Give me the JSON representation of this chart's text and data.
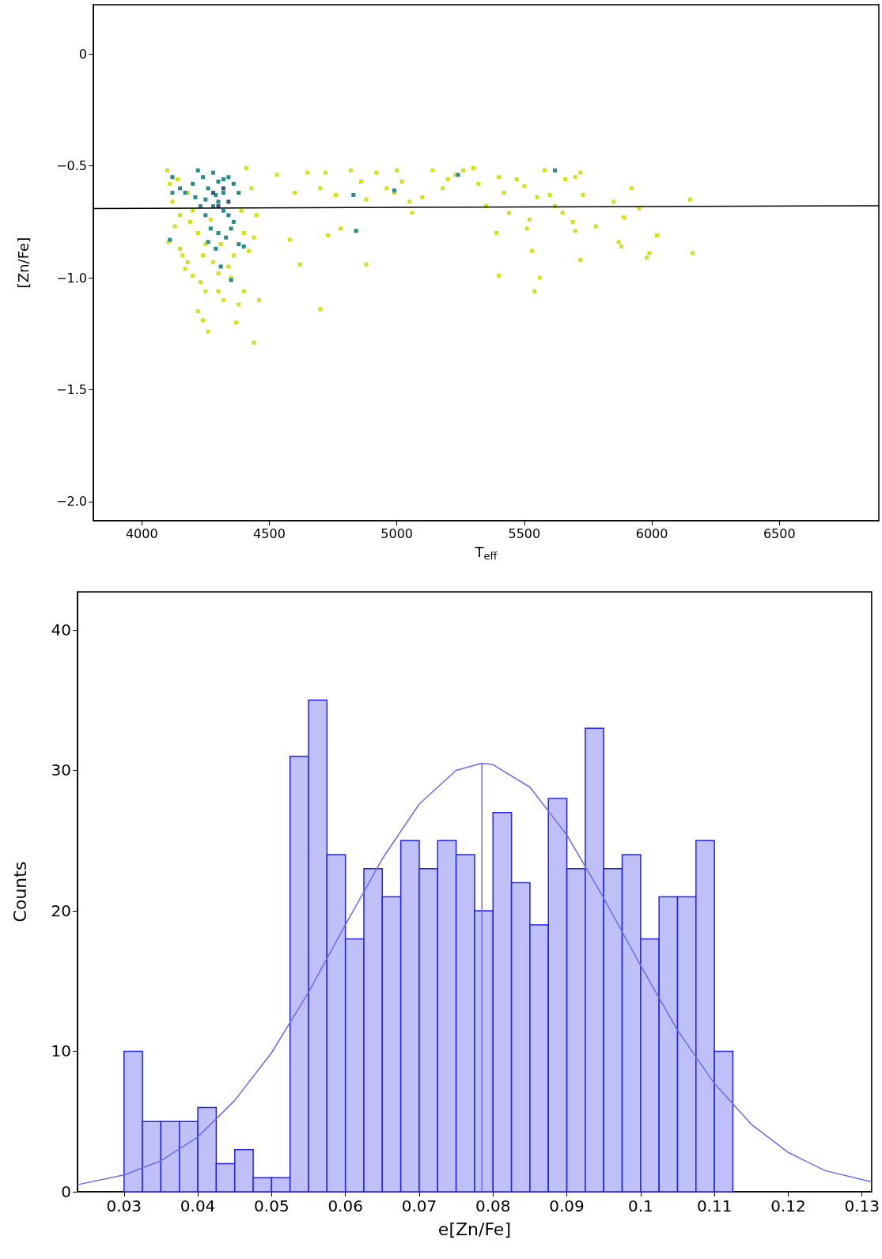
{
  "chart_data": [
    {
      "type": "scatter",
      "xlabel": "T$_{eff}$",
      "ylabel": "[Zn/Fe]",
      "xlim": [
        3810,
        6890
      ],
      "ylim": [
        -2.085,
        0.22
      ],
      "xticks": [
        4000,
        4500,
        5000,
        5500,
        6000,
        6500
      ],
      "yticks": [
        0,
        {
          "value": -0.5,
          "label": "−0.5"
        },
        {
          "value": -1.0,
          "label": "−1.0"
        },
        {
          "value": -1.5,
          "label": "−1.5"
        },
        {
          "value": -2.0,
          "label": "−2.0"
        }
      ],
      "marker": "square",
      "series": [
        {
          "color": "#d2e21b",
          "x": [
            4100,
            4110,
            4120,
            4130,
            4105,
            4150,
            4160,
            4170,
            4200,
            4180,
            4230,
            4250,
            4220,
            4260,
            4240,
            4300,
            4320,
            4350,
            4380,
            4370,
            4400,
            4440,
            4460,
            4420,
            4440,
            4430,
            4410,
            4450,
            4340,
            4280,
            4300,
            4530,
            4600,
            4650,
            4580,
            4620,
            4700,
            4720,
            4760,
            4780,
            4730,
            4700,
            4820,
            4860,
            4880,
            4920,
            4880,
            4840,
            4960,
            4990,
            5000,
            5020,
            5050,
            5060,
            5100,
            5140,
            5180,
            5200,
            5230,
            5260,
            5300,
            5320,
            5350,
            5390,
            5400,
            5420,
            5440,
            5470,
            5500,
            5520,
            5510,
            5530,
            5550,
            5560,
            5540,
            5400,
            5580,
            5600,
            5620,
            5650,
            5660,
            5700,
            5720,
            5690,
            5700,
            5720,
            5730,
            5780,
            5850,
            5870,
            5880,
            5920,
            5950,
            5980,
            5990,
            6020,
            6150,
            6160,
            5890,
            4140,
            4180,
            4200,
            4220,
            4250,
            4190,
            4360,
            4400,
            4390,
            4270,
            4150,
            4240,
            4310
          ],
          "values": [
            -0.52,
            -0.58,
            -0.66,
            -0.77,
            -0.84,
            -0.87,
            -0.9,
            -0.96,
            -0.99,
            -0.93,
            -1.02,
            -1.06,
            -1.15,
            -1.24,
            -1.19,
            -1.06,
            -1.1,
            -1.0,
            -1.12,
            -1.2,
            -1.06,
            -1.29,
            -1.1,
            -0.88,
            -0.82,
            -0.6,
            -0.51,
            -0.72,
            -0.95,
            -0.93,
            -0.98,
            -0.54,
            -0.62,
            -0.53,
            -0.83,
            -0.94,
            -0.6,
            -0.53,
            -0.63,
            -0.78,
            -0.81,
            -1.14,
            -0.52,
            -0.57,
            -0.65,
            -0.53,
            -0.94,
            -0.79,
            -0.6,
            -0.62,
            -0.52,
            -0.57,
            -0.66,
            -0.71,
            -0.64,
            -0.52,
            -0.6,
            -0.56,
            -0.54,
            -0.52,
            -0.51,
            -0.58,
            -0.68,
            -0.8,
            -0.55,
            -0.62,
            -0.71,
            -0.56,
            -0.59,
            -0.74,
            -0.78,
            -0.88,
            -0.64,
            -1.0,
            -1.06,
            -0.99,
            -0.52,
            -0.63,
            -0.68,
            -0.71,
            -0.56,
            -0.55,
            -0.53,
            -0.75,
            -0.79,
            -0.92,
            -0.63,
            -0.77,
            -0.66,
            -0.84,
            -0.86,
            -0.6,
            -0.69,
            -0.91,
            -0.89,
            -0.81,
            -0.65,
            -0.89,
            -0.73,
            -0.56,
            -0.62,
            -0.7,
            -0.8,
            -0.85,
            -0.75,
            -0.9,
            -0.8,
            -0.7,
            -0.74,
            -0.72,
            -0.9,
            -0.85
          ]
        },
        {
          "color": "#2a8c8a",
          "x": [
            4120,
            4150,
            4170,
            4200,
            4220,
            4240,
            4260,
            4280,
            4300,
            4320,
            4340,
            4360,
            4380,
            4250,
            4280,
            4300,
            4320,
            4340,
            4360,
            4270,
            4300,
            4330,
            4350,
            4250,
            4230,
            4380,
            4290,
            4260,
            4210,
            4110,
            4120,
            4310,
            4350,
            4320,
            4290,
            4400,
            4840,
            4990,
            5240,
            5620,
            4830
          ],
          "values": [
            -0.55,
            -0.6,
            -0.62,
            -0.58,
            -0.52,
            -0.55,
            -0.6,
            -0.53,
            -0.57,
            -0.56,
            -0.55,
            -0.58,
            -0.62,
            -0.65,
            -0.68,
            -0.66,
            -0.7,
            -0.72,
            -0.75,
            -0.78,
            -0.8,
            -0.82,
            -0.78,
            -0.72,
            -0.68,
            -0.85,
            -0.87,
            -0.84,
            -0.64,
            -0.83,
            -0.62,
            -0.95,
            -1.01,
            -0.62,
            -0.63,
            -0.86,
            -0.79,
            -0.61,
            -0.54,
            -0.52,
            -0.63
          ]
        },
        {
          "color": "#3b528b",
          "x": [
            4300,
            4320,
            4280,
            4340
          ],
          "values": [
            -0.68,
            -0.6,
            -0.62,
            -0.66
          ]
        },
        {
          "type": "line",
          "color": "#000000",
          "marker": "none",
          "x": [
            3810,
            6890
          ],
          "values": [
            -0.69,
            -0.678
          ]
        }
      ]
    },
    {
      "type": "histogram",
      "xlabel": "e[Zn/Fe]",
      "ylabel": "Counts",
      "xlim": [
        0.0237,
        0.1313
      ],
      "ylim": [
        0,
        42.7
      ],
      "xticks": [
        0.03,
        0.04,
        0.05,
        0.06,
        0.07,
        0.08,
        0.09,
        0.1,
        0.11,
        0.12,
        0.13
      ],
      "yticks": [
        0,
        10,
        20,
        30,
        40
      ],
      "bins": [
        0.03,
        0.0325,
        0.035,
        0.0375,
        0.04,
        0.0425,
        0.045,
        0.0475,
        0.05,
        0.0525,
        0.055,
        0.0575,
        0.06,
        0.0625,
        0.065,
        0.0675,
        0.07,
        0.0725,
        0.075,
        0.0775,
        0.08,
        0.0825,
        0.085,
        0.0875,
        0.09,
        0.0925,
        0.095,
        0.0975,
        0.1,
        0.1025,
        0.105,
        0.1075,
        0.11,
        0.1125
      ],
      "values": [
        10,
        5,
        5,
        5,
        6,
        2,
        3,
        1,
        1,
        31,
        35,
        24,
        18,
        23,
        21,
        25,
        23,
        25,
        24,
        20,
        27,
        22,
        19,
        28,
        23,
        33,
        23,
        24,
        18,
        21,
        21,
        25,
        10
      ],
      "color": "#c0c0f8",
      "series": [
        {
          "type": "line",
          "color": "#6a6af0",
          "marker": "none",
          "x": [
            0.0237,
            0.03,
            0.035,
            0.04,
            0.045,
            0.05,
            0.055,
            0.06,
            0.065,
            0.07,
            0.075,
            0.0785,
            0.08,
            0.085,
            0.09,
            0.095,
            0.1,
            0.105,
            0.11,
            0.115,
            0.12,
            0.125,
            0.1313
          ],
          "values": [
            0.5,
            1.2,
            2.2,
            3.9,
            6.5,
            9.9,
            14.2,
            19.0,
            23.7,
            27.6,
            30.0,
            30.5,
            30.4,
            28.8,
            25.4,
            20.9,
            16.1,
            11.5,
            7.7,
            4.8,
            2.8,
            1.5,
            0.7
          ]
        },
        {
          "type": "line",
          "color": "#6a6af0",
          "marker": "none",
          "x": [
            0.0785,
            0.0785
          ],
          "values": [
            0,
            30.5
          ]
        }
      ]
    }
  ]
}
